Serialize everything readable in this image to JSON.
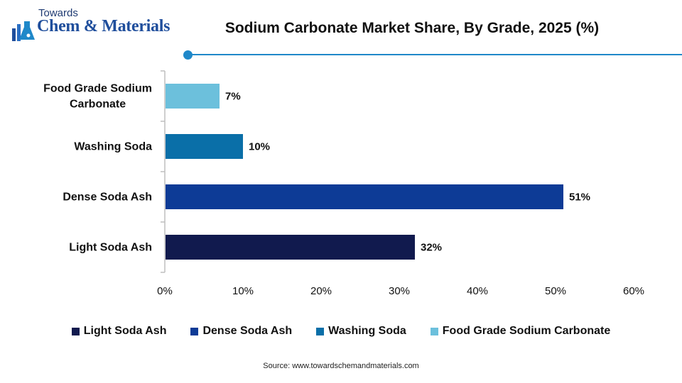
{
  "logo": {
    "top_text": "Towards",
    "main_text": "Chem & Materials",
    "accent": "#1f4e9c"
  },
  "title": "Sodium Carbonate Market Share, By Grade, 2025 (%)",
  "colors": {
    "accent_line": "#1f88c9",
    "axis": "#bfbfbf"
  },
  "chart_data": {
    "type": "bar",
    "orientation": "horizontal",
    "title": "Sodium Carbonate Market Share, By Grade, 2025 (%)",
    "categories": [
      "Food Grade Sodium Carbonate",
      "Washing Soda",
      "Dense Soda Ash",
      "Light Soda Ash"
    ],
    "category_lines": [
      [
        "Food Grade Sodium",
        "Carbonate"
      ],
      [
        "Washing Soda"
      ],
      [
        "Dense Soda Ash"
      ],
      [
        "Light Soda Ash"
      ]
    ],
    "values": [
      7,
      10,
      51,
      32
    ],
    "data_labels": [
      "7%",
      "10%",
      "51%",
      "32%"
    ],
    "colors": [
      "#6cc0dc",
      "#0a6fa8",
      "#0d3b96",
      "#111a4e"
    ],
    "xlim": [
      0,
      60
    ],
    "x_ticks": [
      0,
      10,
      20,
      30,
      40,
      50,
      60
    ],
    "x_tick_labels": [
      "0%",
      "10%",
      "20%",
      "30%",
      "40%",
      "50%",
      "60%"
    ],
    "xlabel": "",
    "ylabel": "",
    "grid": false,
    "legend_position": "bottom"
  },
  "legend": [
    {
      "label": "Light Soda Ash",
      "color": "#111a4e"
    },
    {
      "label": "Dense Soda Ash",
      "color": "#0d3b96"
    },
    {
      "label": "Washing Soda",
      "color": "#0a6fa8"
    },
    {
      "label": "Food Grade Sodium Carbonate",
      "color": "#6cc0dc"
    }
  ],
  "source": "Source: www.towardschemandmaterials.com"
}
